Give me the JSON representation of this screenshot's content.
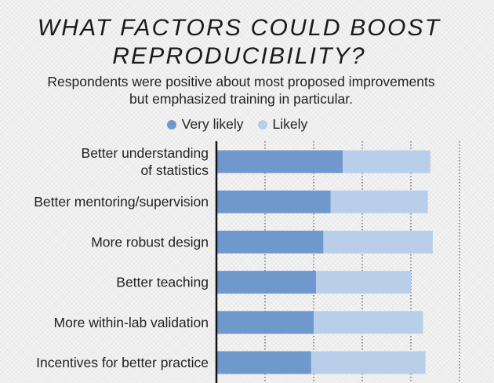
{
  "chart_data": {
    "type": "bar",
    "orientation": "horizontal",
    "stacked": true,
    "title": "WHAT FACTORS COULD BOOST\nREPRODUCIBILITY?",
    "subtitle": "Respondents were positive about most proposed improvements\nbut emphasized training in particular.",
    "legend_placement": "top-center",
    "grid": true,
    "xlim": [
      0,
      100
    ],
    "categories": [
      "Better understanding\nof statistics",
      "Better mentoring/supervision",
      "More robust design",
      "Better teaching",
      "More within-lab validation",
      "Incentives for better practice"
    ],
    "series": [
      {
        "name": "Very likely",
        "color": "#6f98cc",
        "values": [
          52,
          47,
          44,
          41,
          40,
          39
        ]
      },
      {
        "name": "Likely",
        "color": "#b9cfe9",
        "values": [
          36,
          40,
          45,
          39,
          45,
          47
        ]
      }
    ]
  }
}
